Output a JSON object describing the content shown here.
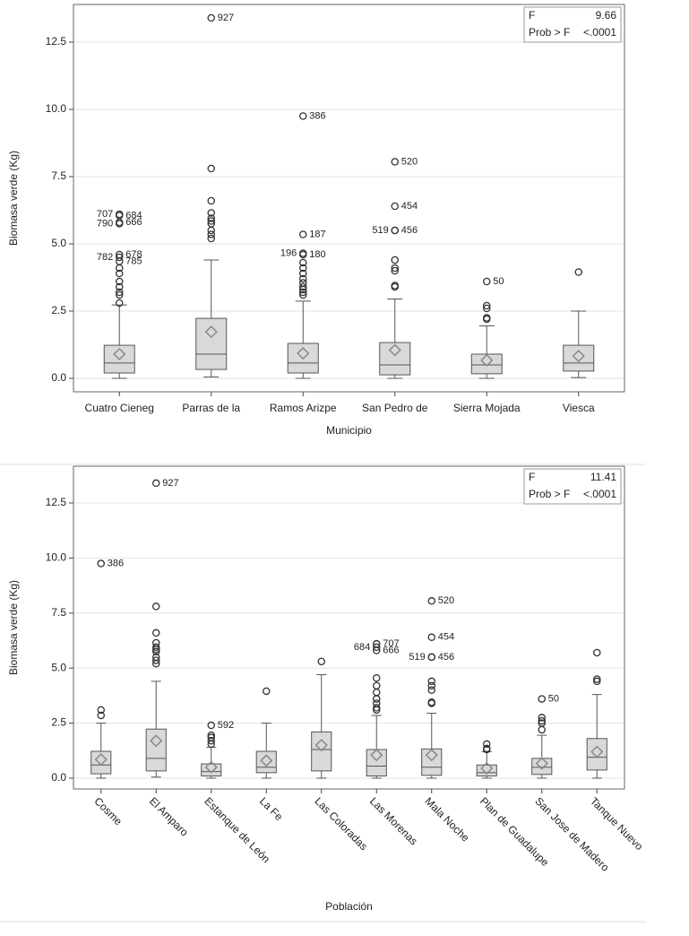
{
  "chart_data": [
    {
      "type": "box",
      "y_label": "Biomasa verde (Kg)",
      "x_label": "Municipio",
      "categories": [
        "Cuatro Cieneg",
        "Parras de la",
        "Ramos Arizpe",
        "San Pedro de",
        "Sierra Mojada",
        "Viesca"
      ],
      "ylim": [
        -0.5,
        13.9
      ],
      "yticks": [
        {
          "value": 0,
          "label": "0.0"
        },
        2.5,
        {
          "value": 5,
          "label": "5.0"
        },
        7.5,
        {
          "value": 10,
          "label": "10.0"
        },
        12.5
      ],
      "grid": true,
      "box_color": "#d9d9d9",
      "stats": [
        {
          "label": "F",
          "value": 9.66
        },
        {
          "label": "Prob > F",
          "value": "<.0001"
        }
      ],
      "boxes": [
        {
          "min": 0,
          "q1": 0.2,
          "median": 0.57,
          "q3": 1.23,
          "max": 2.73,
          "mean": 0.9,
          "outliers": [
            2.8,
            3.1,
            3.2,
            3.4,
            3.6,
            3.9,
            4.1,
            4.35,
            4.6,
            4.5,
            5.8,
            5.75,
            6.05,
            6.1
          ],
          "outlier_labels": [
            null,
            null,
            null,
            null,
            null,
            null,
            null,
            "785",
            "678",
            "782",
            "666",
            "790",
            "684",
            "707"
          ]
        },
        {
          "min": 0.05,
          "q1": 0.33,
          "median": 0.9,
          "q3": 2.23,
          "max": 4.4,
          "mean": 1.73,
          "outliers": [
            5.2,
            5.35,
            5.5,
            5.75,
            5.85,
            5.95,
            6.15,
            6.6,
            7.8,
            13.4
          ],
          "outlier_labels": [
            null,
            null,
            null,
            null,
            null,
            null,
            null,
            null,
            null,
            "927"
          ]
        },
        {
          "min": 0,
          "q1": 0.2,
          "median": 0.57,
          "q3": 1.3,
          "max": 2.87,
          "mean": 0.93,
          "outliers": [
            3.1,
            3.2,
            3.3,
            3.4,
            3.55,
            3.7,
            3.9,
            4.1,
            4.3,
            4.6,
            4.65,
            5.35,
            9.75
          ],
          "outlier_labels": [
            null,
            null,
            null,
            null,
            null,
            null,
            null,
            null,
            null,
            "180",
            "196",
            "187",
            "386"
          ]
        },
        {
          "min": 0,
          "q1": 0.13,
          "median": 0.5,
          "q3": 1.33,
          "max": 2.95,
          "mean": 1.05,
          "outliers": [
            3.4,
            3.45,
            4.0,
            4.1,
            4.4,
            5.5,
            5.5,
            6.4,
            8.05
          ],
          "outlier_labels": [
            null,
            null,
            null,
            null,
            null,
            "456",
            "519",
            "454",
            "520"
          ]
        },
        {
          "min": 0,
          "q1": 0.17,
          "median": 0.5,
          "q3": 0.9,
          "max": 1.95,
          "mean": 0.67,
          "outliers": [
            2.2,
            2.25,
            2.6,
            2.7,
            3.6
          ],
          "outlier_labels": [
            null,
            null,
            null,
            null,
            "50"
          ]
        },
        {
          "min": 0.03,
          "q1": 0.27,
          "median": 0.57,
          "q3": 1.23,
          "max": 2.5,
          "mean": 0.83,
          "outliers": [
            3.95
          ],
          "outlier_labels": [
            null
          ]
        }
      ]
    },
    {
      "type": "box",
      "y_label": "Biomasa verde (Kg)",
      "x_label": "Población",
      "categories": [
        "Cosme",
        "El Amparo",
        "Estanque de León",
        "La Fe",
        "Las Coloradas",
        "Las Morenas",
        "Mala Noche",
        "Plan de Guadalupe",
        "San Jose de Madero",
        "Tanque Nuevo"
      ],
      "ylim": [
        -0.49,
        14.17
      ],
      "yticks": [
        {
          "value": 0,
          "label": "0.0"
        },
        2.5,
        {
          "value": 5,
          "label": "5.0"
        },
        7.5,
        {
          "value": 10,
          "label": "10.0"
        },
        12.5
      ],
      "grid": true,
      "box_color": "#d9d9d9",
      "stats": [
        {
          "label": "F",
          "value": 11.41
        },
        {
          "label": "Prob > F",
          "value": "<.0001"
        }
      ],
      "boxes": [
        {
          "min": 0,
          "q1": 0.2,
          "median": 0.6,
          "q3": 1.22,
          "max": 2.5,
          "mean": 0.85,
          "outliers": [
            2.85,
            3.1,
            9.75
          ],
          "outlier_labels": [
            null,
            null,
            "386"
          ]
        },
        {
          "min": 0.05,
          "q1": 0.33,
          "median": 0.9,
          "q3": 2.23,
          "max": 4.4,
          "mean": 1.7,
          "outliers": [
            5.2,
            5.35,
            5.5,
            5.75,
            5.85,
            5.95,
            6.15,
            6.6,
            7.8,
            13.4
          ],
          "outlier_labels": [
            null,
            null,
            null,
            null,
            null,
            null,
            null,
            null,
            null,
            "927"
          ]
        },
        {
          "min": 0,
          "q1": 0.1,
          "median": 0.3,
          "q3": 0.65,
          "max": 1.4,
          "mean": 0.5,
          "outliers": [
            1.55,
            1.7,
            1.85,
            1.95,
            2.4
          ],
          "outlier_labels": [
            null,
            null,
            null,
            null,
            "592"
          ]
        },
        {
          "min": 0,
          "q1": 0.25,
          "median": 0.5,
          "q3": 1.22,
          "max": 2.5,
          "mean": 0.8,
          "outliers": [
            3.95
          ],
          "outlier_labels": [
            null
          ]
        },
        {
          "min": 0,
          "q1": 0.33,
          "median": 1.3,
          "q3": 2.1,
          "max": 4.7,
          "mean": 1.5,
          "outliers": [
            5.3
          ],
          "outlier_labels": [
            null
          ]
        },
        {
          "min": 0,
          "q1": 0.1,
          "median": 0.55,
          "q3": 1.3,
          "max": 2.85,
          "mean": 1.05,
          "outliers": [
            3.1,
            3.2,
            3.4,
            3.6,
            3.9,
            4.2,
            4.55,
            5.8,
            5.95,
            6.1
          ],
          "outlier_labels": [
            null,
            null,
            null,
            null,
            null,
            null,
            null,
            "666",
            "684",
            "707"
          ]
        },
        {
          "min": 0,
          "q1": 0.13,
          "median": 0.5,
          "q3": 1.33,
          "max": 2.95,
          "mean": 1.05,
          "outliers": [
            3.4,
            3.45,
            4.0,
            4.2,
            4.4,
            5.5,
            5.5,
            6.4,
            8.05
          ],
          "outlier_labels": [
            null,
            null,
            null,
            null,
            null,
            "456",
            "519",
            "454",
            "520"
          ]
        },
        {
          "min": 0,
          "q1": 0.1,
          "median": 0.25,
          "q3": 0.6,
          "max": 1.2,
          "mean": 0.45,
          "outliers": [
            1.3,
            1.35,
            1.55
          ],
          "outlier_labels": [
            null,
            null,
            null
          ]
        },
        {
          "min": 0,
          "q1": 0.17,
          "median": 0.5,
          "q3": 0.9,
          "max": 1.95,
          "mean": 0.67,
          "outliers": [
            2.2,
            2.5,
            2.6,
            2.75,
            3.6
          ],
          "outlier_labels": [
            null,
            null,
            null,
            null,
            "50"
          ]
        },
        {
          "min": 0,
          "q1": 0.37,
          "median": 0.95,
          "q3": 1.8,
          "max": 3.8,
          "mean": 1.2,
          "outliers": [
            4.4,
            4.5,
            5.7
          ],
          "outlier_labels": [
            null,
            null,
            null
          ]
        }
      ]
    }
  ]
}
